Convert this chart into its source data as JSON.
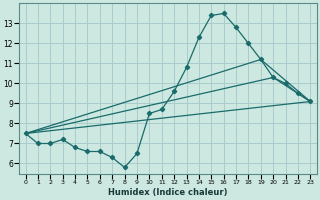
{
  "xlabel": "Humidex (Indice chaleur)",
  "bg_color": "#cce8e0",
  "grid_color": "#aacccc",
  "line_color": "#1a6b6b",
  "spine_color": "#5a8a8a",
  "xlim": [
    -0.5,
    23.5
  ],
  "ylim": [
    5.5,
    14.0
  ],
  "xticks": [
    0,
    1,
    2,
    3,
    4,
    5,
    6,
    7,
    8,
    9,
    10,
    11,
    12,
    13,
    14,
    15,
    16,
    17,
    18,
    19,
    20,
    21,
    22,
    23
  ],
  "yticks": [
    6,
    7,
    8,
    9,
    10,
    11,
    12,
    13
  ],
  "line1_x": [
    0,
    1,
    2,
    3,
    4,
    5,
    6,
    7,
    8,
    9,
    10,
    11,
    12,
    13,
    14,
    15,
    16,
    17,
    18,
    19,
    20,
    21,
    22,
    23
  ],
  "line1_y": [
    7.5,
    7.0,
    7.0,
    7.2,
    6.8,
    6.6,
    6.6,
    6.3,
    5.8,
    6.5,
    8.5,
    8.7,
    9.6,
    10.8,
    12.3,
    13.4,
    13.5,
    12.8,
    12.0,
    11.2,
    10.3,
    10.0,
    9.5,
    9.1
  ],
  "line2_x": [
    0,
    23
  ],
  "line2_y": [
    7.5,
    9.1
  ],
  "line3_x": [
    0,
    19,
    23
  ],
  "line3_y": [
    7.5,
    11.2,
    9.1
  ],
  "line4_x": [
    0,
    20,
    23
  ],
  "line4_y": [
    7.5,
    10.3,
    9.1
  ]
}
